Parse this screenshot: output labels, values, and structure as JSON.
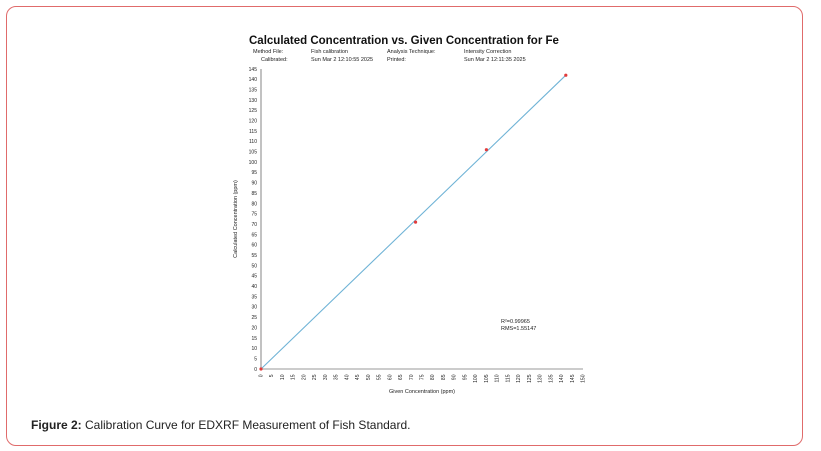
{
  "figure": {
    "caption_label": "Figure 2:",
    "caption_text": " Calibration Curve for EDXRF Measurement of Fish Standard."
  },
  "meta": {
    "method_label": "Method File:",
    "method_value": "Fish calibration",
    "technique_label": "Analysis Technique:",
    "technique_value": "Intensity Correction",
    "calibrated_label": "Calibrated:",
    "calibrated_value": "Sun Mar  2 12:10:55 2025",
    "printed_label": "Printed:",
    "printed_value": "Sun Mar  2 12:11:35 2025"
  },
  "stats": {
    "r2": "R²=0.99965",
    "rms": "RMS=1.55147"
  },
  "chart_data": {
    "type": "scatter",
    "title": "Calculated Concentration vs. Given Concentration for Fe",
    "xlabel": "Given Concentration (ppm)",
    "ylabel": "Calculated Concentration (ppm)",
    "xlim": [
      0,
      150
    ],
    "ylim": [
      0,
      145
    ],
    "x_ticks": [
      0,
      5,
      10,
      15,
      20,
      25,
      30,
      35,
      40,
      45,
      50,
      55,
      60,
      65,
      70,
      75,
      80,
      85,
      90,
      95,
      100,
      105,
      110,
      115,
      120,
      125,
      130,
      135,
      140,
      145,
      150
    ],
    "y_ticks": [
      0,
      5,
      10,
      15,
      20,
      25,
      30,
      35,
      40,
      45,
      50,
      55,
      60,
      65,
      70,
      75,
      80,
      85,
      90,
      95,
      100,
      105,
      110,
      115,
      120,
      125,
      130,
      135,
      140,
      145
    ],
    "y_tick_labels": [
      "0",
      "5",
      "10",
      "15",
      "20",
      "25",
      "30",
      "35",
      "40",
      "45",
      "50",
      "55",
      "60",
      "65",
      "70",
      "75",
      "80",
      "85",
      "90",
      "95",
      "100",
      "105",
      "110",
      "115",
      "120",
      "125",
      "130",
      "135",
      "140",
      "145"
    ],
    "points": [
      {
        "x": 0,
        "y": 0
      },
      {
        "x": 72,
        "y": 71
      },
      {
        "x": 105,
        "y": 106
      },
      {
        "x": 142,
        "y": 142
      }
    ],
    "fit_line": [
      [
        0,
        0
      ],
      [
        142,
        142
      ]
    ],
    "colors": {
      "line": "#6fb3d6",
      "points": "#e23b3b",
      "axis": "#333333"
    }
  }
}
